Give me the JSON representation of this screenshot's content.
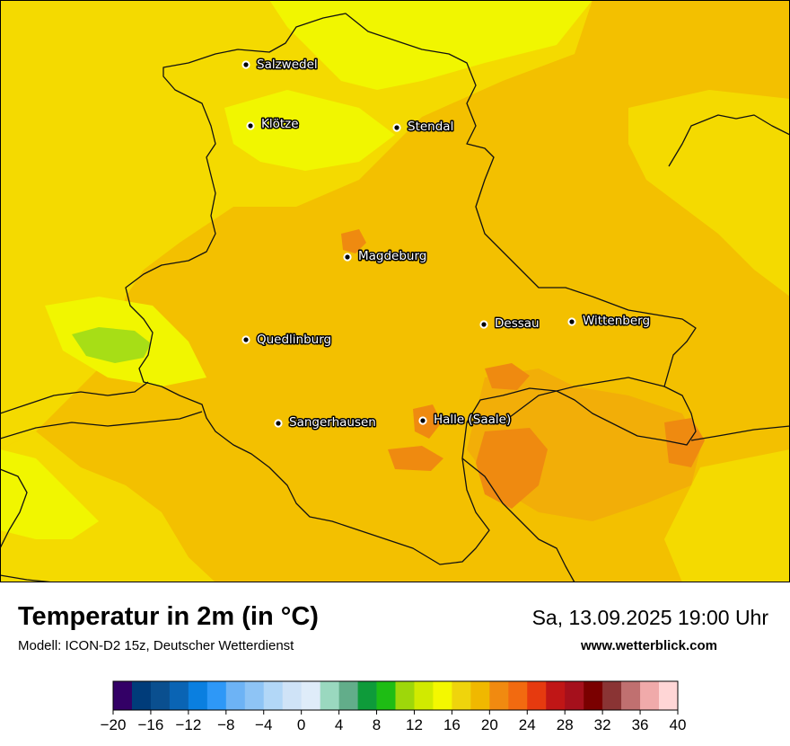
{
  "header": {
    "title": "Temperatur in 2m (in °C)",
    "model": "Modell: ICON-D2 15z, Deutscher Wetterdienst",
    "datetime": "Sa, 13.09.2025 19:00 Uhr",
    "website": "www.wetterblick.com"
  },
  "cities": [
    {
      "name": "Salzwedel"
    },
    {
      "name": "Klötze"
    },
    {
      "name": "Stendal"
    },
    {
      "name": "Magdeburg"
    },
    {
      "name": "Dessau"
    },
    {
      "name": "Wittenberg"
    },
    {
      "name": "Quedlinburg"
    },
    {
      "name": "Sangerhausen"
    },
    {
      "name": "Halle (Saale)"
    }
  ],
  "legend": {
    "unit": "°C",
    "min": -20,
    "max": 40,
    "step": 2,
    "tick_labels": [
      "−20",
      "−16",
      "−12",
      "−8",
      "−4",
      "0",
      "4",
      "8",
      "12",
      "16",
      "20",
      "24",
      "28",
      "32",
      "36",
      "40"
    ],
    "colors": [
      "#330066",
      "#003c7a",
      "#0a4f8f",
      "#0a64b4",
      "#0a7fe0",
      "#2e98f7",
      "#6db3f5",
      "#8ec4f5",
      "#b2d7f7",
      "#cfe3f7",
      "#dfecf9",
      "#9ad8bf",
      "#62ad8a",
      "#0e9b3a",
      "#1ebd14",
      "#9ed70a",
      "#d1ea00",
      "#f4f800",
      "#efd40c",
      "#f0b800",
      "#f18a10",
      "#f26a10",
      "#e63a0f",
      "#c01616",
      "#a5101c",
      "#7a0000",
      "#8a3434",
      "#c07070",
      "#f0aaaa",
      "#ffd6d6"
    ]
  },
  "map": {
    "colors": {
      "temp_15": "#f1f600",
      "temp_16": "#f4da00",
      "temp_18": "#f3c000",
      "temp_19": "#f2ae08",
      "temp_21": "#ef8a10",
      "temp_13": "#a7de16",
      "border": "#111111"
    }
  }
}
